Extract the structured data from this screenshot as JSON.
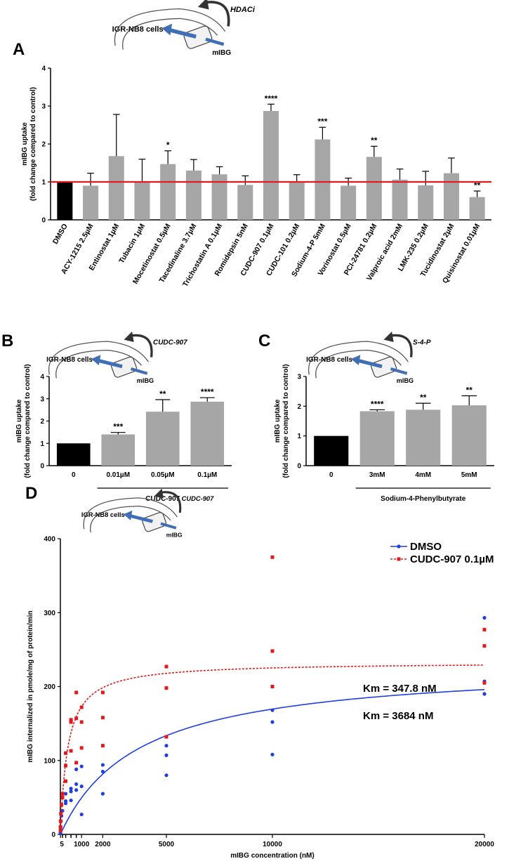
{
  "chart_data": [
    {
      "panel": "A",
      "type": "bar",
      "ylabel_line1": "mIBG uptake",
      "ylabel_line2": "(fold change compared to control)",
      "ylim": [
        0,
        4
      ],
      "yticks": [
        0,
        1,
        2,
        3,
        4
      ],
      "reference_line": 1.0,
      "reference_color": "#e31a1c",
      "categories": [
        "DMSO",
        "ACY-1215 2.5µM",
        "Entinostat 1µM",
        "Tubacin 1µM",
        "Mocetinostat 0.5µM",
        "Tacedinaline 3.7µM",
        "Trichostatin A 0.1µM",
        "Romidepsin 5nM",
        "CUDC-907 0.1µM",
        "CUDC-101 0.2µM",
        "Sodium-4-P 5mM",
        "Vorinostat 0.5µM",
        "PCI-24781 0.2µM",
        "Valproic acid 2mM",
        "LMK-235 0.2µM",
        "Tucidinostat 2µM",
        "Quisinostat 0.01µM"
      ],
      "values": [
        1.0,
        0.9,
        1.68,
        1.0,
        1.47,
        1.3,
        1.2,
        0.92,
        2.87,
        1.0,
        2.12,
        0.9,
        1.66,
        1.06,
        0.91,
        1.23,
        0.6
      ],
      "errors": [
        0,
        0.33,
        1.1,
        0.6,
        0.35,
        0.29,
        0.2,
        0.24,
        0.18,
        0.19,
        0.32,
        0.2,
        0.28,
        0.28,
        0.37,
        0.4,
        0.16
      ],
      "significance": [
        "",
        "",
        "",
        "",
        "*",
        "",
        "",
        "",
        "****",
        "",
        "***",
        "",
        "**",
        "",
        "",
        "",
        "**"
      ],
      "bar_colors": [
        "#000000",
        "#a6a6a6",
        "#a6a6a6",
        "#a6a6a6",
        "#a6a6a6",
        "#a6a6a6",
        "#a6a6a6",
        "#a6a6a6",
        "#a6a6a6",
        "#a6a6a6",
        "#a6a6a6",
        "#a6a6a6",
        "#a6a6a6",
        "#a6a6a6",
        "#a6a6a6",
        "#a6a6a6",
        "#a6a6a6"
      ],
      "schematic": {
        "cells": "IGR-NB8 cells",
        "drug": "HDACi",
        "tracer": "mIBG"
      }
    },
    {
      "panel": "B",
      "type": "bar",
      "ylabel_line1": "mIBG uptake",
      "ylabel_line2": "(fold change compared to control)",
      "ylim": [
        0,
        4
      ],
      "yticks": [
        0,
        1,
        2,
        3,
        4
      ],
      "categories": [
        "0",
        "0.01µM",
        "0.05µM",
        "0.1µM"
      ],
      "values": [
        1.0,
        1.4,
        2.42,
        2.87
      ],
      "errors": [
        0,
        0.09,
        0.54,
        0.18
      ],
      "significance": [
        "",
        "***",
        "**",
        "****"
      ],
      "bar_colors": [
        "#000000",
        "#a6a6a6",
        "#a6a6a6",
        "#a6a6a6"
      ],
      "group_label": "CUDC-907",
      "schematic": {
        "cells": "IGR-NB8 cells",
        "drug": "CUDC-907",
        "tracer": "mIBG"
      }
    },
    {
      "panel": "C",
      "type": "bar",
      "ylabel_line1": "mIBG uptake",
      "ylabel_line2": "(fold change compared to control)",
      "ylim": [
        0,
        3
      ],
      "yticks": [
        0,
        1,
        2,
        3
      ],
      "categories": [
        "0",
        "3mM",
        "4mM",
        "5mM"
      ],
      "values": [
        1.0,
        1.83,
        1.88,
        2.03
      ],
      "errors": [
        0,
        0.05,
        0.22,
        0.32
      ],
      "significance": [
        "",
        "****",
        "**",
        "**"
      ],
      "bar_colors": [
        "#000000",
        "#a6a6a6",
        "#a6a6a6",
        "#a6a6a6"
      ],
      "group_label": "Sodium-4-Phenylbutyrate",
      "schematic": {
        "cells": "IGR-NB8 cells",
        "drug": "S-4-P",
        "tracer": "mIBG"
      }
    },
    {
      "panel": "D",
      "type": "scatter",
      "xlabel": "mIBG concentration (nM)",
      "ylabel": "mIBG internalized in pmole/mg of protein/min",
      "xlim": [
        0,
        20000
      ],
      "ylim": [
        0,
        400
      ],
      "xticks": [
        5,
        1000,
        2000,
        5000,
        10000,
        20000
      ],
      "xtick_labels": [
        "5",
        "1000",
        "2000",
        "5000",
        "10000",
        "20000"
      ],
      "yticks": [
        0,
        100,
        200,
        300,
        400
      ],
      "series": [
        {
          "name": "DMSO",
          "color": "#1f3fe0",
          "line_style": "solid",
          "fit": {
            "model": "Michaelis-Menten",
            "Vmax": 232,
            "Km": 3684
          },
          "km_label": "Km = 3684 nM",
          "points": [
            [
              5,
              2
            ],
            [
              5,
              6
            ],
            [
              10,
              10
            ],
            [
              25,
              18
            ],
            [
              50,
              25
            ],
            [
              100,
              32
            ],
            [
              250,
              42
            ],
            [
              250,
              45
            ],
            [
              250,
              55
            ],
            [
              500,
              46
            ],
            [
              500,
              58
            ],
            [
              500,
              62
            ],
            [
              750,
              60
            ],
            [
              750,
              68
            ],
            [
              750,
              88
            ],
            [
              1000,
              27
            ],
            [
              1000,
              65
            ],
            [
              1000,
              92
            ],
            [
              2000,
              55
            ],
            [
              2000,
              85
            ],
            [
              2000,
              94
            ],
            [
              5000,
              80
            ],
            [
              5000,
              107
            ],
            [
              5000,
              120
            ],
            [
              10000,
              108
            ],
            [
              10000,
              152
            ],
            [
              10000,
              168
            ],
            [
              20000,
              190
            ],
            [
              20000,
              207
            ],
            [
              20000,
              293
            ]
          ]
        },
        {
          "name": "CUDC-907 0.1µM",
          "color": "#e31a1c",
          "line_style": "dashed",
          "fit": {
            "model": "Michaelis-Menten",
            "Vmax": 233,
            "Km": 347.8
          },
          "km_label": "Km = 347.8 nM",
          "points": [
            [
              5,
              5
            ],
            [
              5,
              10
            ],
            [
              10,
              18
            ],
            [
              25,
              28
            ],
            [
              50,
              40
            ],
            [
              100,
              50
            ],
            [
              100,
              55
            ],
            [
              250,
              72
            ],
            [
              250,
              93
            ],
            [
              250,
              110
            ],
            [
              500,
              113
            ],
            [
              500,
              152
            ],
            [
              500,
              155
            ],
            [
              750,
              97
            ],
            [
              750,
              157
            ],
            [
              750,
              192
            ],
            [
              1000,
              117
            ],
            [
              1000,
              152
            ],
            [
              1000,
              172
            ],
            [
              2000,
              120
            ],
            [
              2000,
              158
            ],
            [
              2000,
              192
            ],
            [
              5000,
              132
            ],
            [
              5000,
              198
            ],
            [
              5000,
              227
            ],
            [
              10000,
              200
            ],
            [
              10000,
              248
            ],
            [
              10000,
              375
            ],
            [
              20000,
              205
            ],
            [
              20000,
              255
            ],
            [
              20000,
              277
            ]
          ]
        }
      ],
      "schematic": {
        "cells": "IGR-NB8 cells",
        "drug": "CUDC-907",
        "tracer": "mIBG"
      }
    }
  ]
}
